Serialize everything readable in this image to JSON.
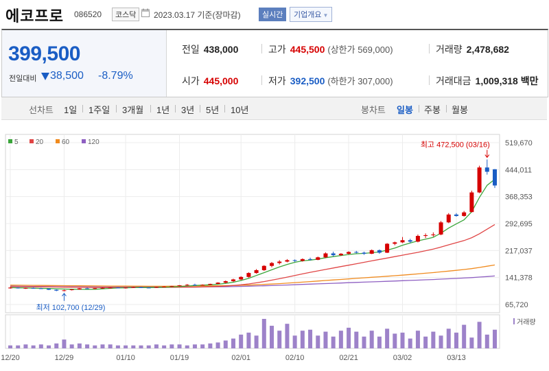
{
  "header": {
    "company": "에코프로",
    "code": "086520",
    "market": "코스닥",
    "date": "2023.03.17 기준(장마감)",
    "realtime": "실시간",
    "company_info": "기업개요"
  },
  "quote": {
    "price": "399,500",
    "prev_label": "전일대비",
    "change": "38,500",
    "change_pct": "-8.79%",
    "prev_close_label": "전일",
    "prev_close": "438,000",
    "high_label": "고가",
    "high": "445,500",
    "upper_limit": "(상한가 569,000)",
    "volume_label": "거래량",
    "volume": "2,478,682",
    "open_label": "시가",
    "open": "445,000",
    "low_label": "저가",
    "low": "392,500",
    "lower_limit": "(하한가 307,000)",
    "amount_label": "거래대금",
    "amount": "1,009,318 백만"
  },
  "tabs": {
    "line_label": "선차트",
    "line_periods": [
      "1일",
      "1주일",
      "3개월",
      "1년",
      "3년",
      "5년",
      "10년"
    ],
    "candle_label": "봉차트",
    "candle_periods": [
      "일봉",
      "주봉",
      "월봉"
    ],
    "active_candle": "일봉"
  },
  "chart_data": {
    "type": "candlestick",
    "legend": [
      {
        "name": "5",
        "color": "#3aa53a"
      },
      {
        "name": "20",
        "color": "#e04545"
      },
      {
        "name": "60",
        "color": "#f08a1d"
      },
      {
        "name": "120",
        "color": "#8e5fc2"
      }
    ],
    "y_ticks": [
      "519,670",
      "444,011",
      "368,353",
      "292,695",
      "217,037",
      "141,378",
      "65,720"
    ],
    "y_values": [
      519670,
      444011,
      368353,
      292695,
      217037,
      141378,
      65720
    ],
    "x_ticks": [
      "12/20",
      "12/29",
      "01/10",
      "01/19",
      "02/01",
      "02/10",
      "02/21",
      "03/02",
      "03/13"
    ],
    "x_tick_index": [
      0,
      7,
      15,
      22,
      30,
      37,
      44,
      51,
      58
    ],
    "high_annotation": "최고 472,500 (03/16)",
    "low_annotation": "최저 102,700 (12/29)",
    "volume_label": "거래량",
    "up_color": "#d60000",
    "down_color": "#1a5dc4",
    "ohlc": [
      [
        112000,
        115000,
        110000,
        113000
      ],
      [
        113000,
        114000,
        110500,
        111000
      ],
      [
        111000,
        113000,
        109500,
        112000
      ],
      [
        112000,
        113500,
        110000,
        111000
      ],
      [
        111000,
        112500,
        109000,
        110000
      ],
      [
        110000,
        111000,
        106000,
        107000
      ],
      [
        107000,
        108000,
        103000,
        104500
      ],
      [
        105000,
        107000,
        102700,
        105500
      ],
      [
        106000,
        109000,
        105000,
        108000
      ],
      [
        108000,
        112000,
        107000,
        111000
      ],
      [
        111000,
        113000,
        109000,
        110000
      ],
      [
        110000,
        112000,
        108500,
        111500
      ],
      [
        111500,
        113500,
        110000,
        112500
      ],
      [
        112500,
        114000,
        111000,
        113000
      ],
      [
        113000,
        114000,
        111000,
        112000
      ],
      [
        112000,
        113500,
        110500,
        113000
      ],
      [
        113000,
        115000,
        112000,
        114000
      ],
      [
        114000,
        115000,
        112000,
        113000
      ],
      [
        113000,
        114000,
        111500,
        112500
      ],
      [
        112500,
        115000,
        112000,
        114500
      ],
      [
        114500,
        117000,
        114000,
        116000
      ],
      [
        116000,
        118000,
        114500,
        117500
      ],
      [
        117500,
        120000,
        116500,
        119500
      ],
      [
        119500,
        123000,
        118000,
        121000
      ],
      [
        121000,
        124000,
        118000,
        120000
      ],
      [
        120000,
        122000,
        119000,
        121000
      ],
      [
        121000,
        124000,
        120000,
        123500
      ],
      [
        123500,
        128000,
        123000,
        127000
      ],
      [
        127000,
        133000,
        125000,
        131000
      ],
      [
        131000,
        138000,
        129000,
        136000
      ],
      [
        136000,
        145000,
        134000,
        143000
      ],
      [
        143000,
        156000,
        141000,
        154000
      ],
      [
        154000,
        165000,
        152000,
        162000
      ],
      [
        162000,
        176000,
        160000,
        174000
      ],
      [
        174000,
        185000,
        170000,
        182000
      ],
      [
        182000,
        190000,
        178000,
        186000
      ],
      [
        186000,
        193000,
        184000,
        190000
      ],
      [
        190000,
        192000,
        185000,
        188000
      ],
      [
        188000,
        195000,
        186000,
        193000
      ],
      [
        193000,
        197000,
        189000,
        191000
      ],
      [
        191000,
        200000,
        190000,
        198000
      ],
      [
        198000,
        212000,
        196000,
        209000
      ],
      [
        209000,
        214000,
        200000,
        204000
      ],
      [
        204000,
        210000,
        202000,
        208000
      ],
      [
        208000,
        215000,
        206000,
        213000
      ],
      [
        213000,
        216000,
        209000,
        211000
      ],
      [
        211000,
        214000,
        205000,
        208000
      ],
      [
        208000,
        220000,
        207000,
        218000
      ],
      [
        218000,
        220000,
        208000,
        211000
      ],
      [
        211000,
        238000,
        210000,
        236000
      ],
      [
        236000,
        242000,
        232000,
        240000
      ],
      [
        240000,
        255000,
        238000,
        246000
      ],
      [
        246000,
        250000,
        238000,
        242000
      ],
      [
        242000,
        262000,
        240000,
        258000
      ],
      [
        258000,
        265000,
        252000,
        260000
      ],
      [
        260000,
        268000,
        256000,
        262000
      ],
      [
        262000,
        300000,
        260000,
        296000
      ],
      [
        296000,
        322000,
        294000,
        318000
      ],
      [
        318000,
        322000,
        312000,
        314000
      ],
      [
        314000,
        328000,
        312000,
        324000
      ],
      [
        325000,
        385000,
        324000,
        380000
      ],
      [
        380000,
        455000,
        378000,
        450000
      ],
      [
        450000,
        472500,
        430000,
        438000
      ],
      [
        445000,
        445500,
        392500,
        399500
      ]
    ],
    "volume_index": [
      3,
      3,
      4,
      3,
      4,
      3,
      5,
      9,
      4,
      5,
      4,
      3,
      4,
      4,
      3,
      3,
      3,
      3,
      3,
      4,
      3,
      4,
      4,
      3,
      4,
      4,
      5,
      6,
      8,
      10,
      14,
      16,
      13,
      30,
      23,
      18,
      25,
      13,
      18,
      19,
      13,
      17,
      12,
      18,
      21,
      17,
      12,
      18,
      12,
      20,
      15,
      16,
      10,
      18,
      12,
      17,
      13,
      20,
      16,
      24,
      11,
      27,
      14,
      19
    ],
    "ma5": [
      113000,
      112500,
      112000,
      111500,
      111000,
      110500,
      110000,
      109000,
      108500,
      108200,
      108100,
      108500,
      109500,
      111000,
      112000,
      112500,
      113000,
      113200,
      113300,
      113500,
      114000,
      115000,
      116000,
      117500,
      119000,
      120000,
      121000,
      122500,
      125000,
      128000,
      133000,
      139000,
      147000,
      155000,
      163000,
      171000,
      178000,
      184000,
      188000,
      190000,
      193000,
      197000,
      200000,
      203000,
      206000,
      208000,
      209000,
      211000,
      213000,
      218000,
      224000,
      232000,
      238000,
      244000,
      249000,
      254000,
      266000,
      280000,
      292000,
      303000,
      326000,
      366000,
      400000,
      417000
    ],
    "ma20": [
      116000,
      115800,
      115600,
      115400,
      115200,
      115000,
      114700,
      114400,
      114200,
      114000,
      113800,
      113600,
      113400,
      113300,
      113200,
      113200,
      113200,
      113300,
      113400,
      113500,
      113600,
      113800,
      114000,
      114300,
      114600,
      115000,
      115600,
      116400,
      117500,
      119000,
      121000,
      123500,
      126500,
      130000,
      134000,
      138000,
      142500,
      147000,
      151500,
      156000,
      160000,
      164000,
      168000,
      172000,
      176000,
      180000,
      184000,
      188000,
      192000,
      196000,
      200000,
      204000,
      208000,
      212000,
      216500,
      221000,
      227000,
      233000,
      239000,
      245000,
      253000,
      264000,
      277000,
      290000
    ],
    "ma60": [
      120000,
      119800,
      119600,
      119400,
      119200,
      119000,
      118800,
      118600,
      118400,
      118200,
      118000,
      117800,
      117600,
      117400,
      117300,
      117200,
      117100,
      117000,
      116900,
      116900,
      116900,
      117000,
      117100,
      117200,
      117400,
      117600,
      117900,
      118200,
      118600,
      119000,
      119600,
      120200,
      121000,
      122000,
      123000,
      124200,
      125500,
      127000,
      128500,
      130000,
      131500,
      133000,
      134500,
      136000,
      137500,
      139000,
      140500,
      142000,
      143500,
      145000,
      146500,
      148000,
      149800,
      151600,
      153400,
      155200,
      157200,
      159300,
      161500,
      163800,
      166300,
      169500,
      173000,
      176500
    ],
    "ma120": [
      117000,
      116800,
      116600,
      116400,
      116200,
      116000,
      115800,
      115600,
      115400,
      115200,
      115000,
      114900,
      114800,
      114700,
      114600,
      114500,
      114400,
      114300,
      114300,
      114300,
      114300,
      114300,
      114400,
      114500,
      114600,
      114800,
      115000,
      115300,
      115600,
      116000,
      116500,
      117000,
      117600,
      118200,
      118900,
      119600,
      120400,
      121200,
      122000,
      122800,
      123600,
      124400,
      125200,
      126000,
      126800,
      127600,
      128400,
      129200,
      130000,
      130800,
      131600,
      132400,
      133200,
      134000,
      134900,
      135800,
      136800,
      137800,
      138900,
      140000,
      141200,
      142600,
      144100,
      145700
    ]
  }
}
